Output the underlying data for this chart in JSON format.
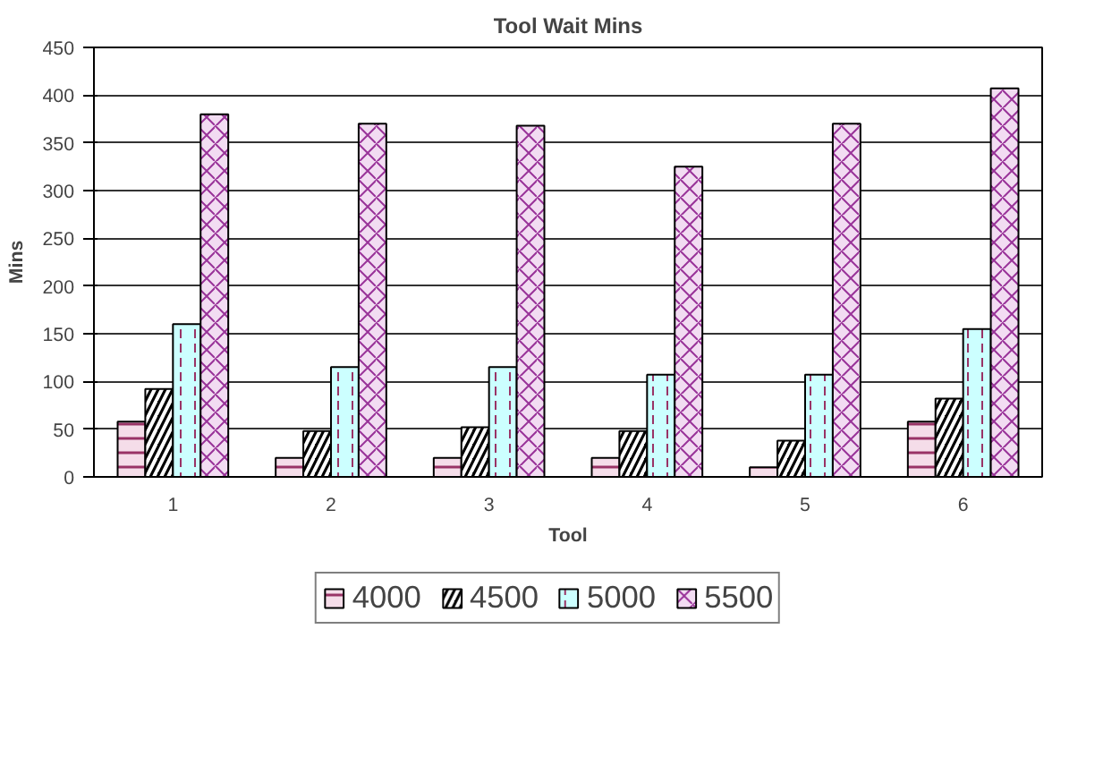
{
  "chart_data": {
    "type": "bar",
    "title": "Tool Wait Mins",
    "xlabel": "Tool",
    "ylabel": "Mins",
    "categories": [
      "1",
      "2",
      "3",
      "4",
      "5",
      "6"
    ],
    "series": [
      {
        "name": "4000",
        "color": "#f5dde9",
        "values": [
          58,
          20,
          20,
          20,
          10,
          58
        ]
      },
      {
        "name": "4500",
        "color": "#000000",
        "values": [
          92,
          48,
          52,
          48,
          38,
          82
        ]
      },
      {
        "name": "5000",
        "color": "#ccffff",
        "values": [
          160,
          115,
          115,
          107,
          107,
          155
        ]
      },
      {
        "name": "5500",
        "color": "#f2dcf2",
        "values": [
          380,
          370,
          368,
          325,
          370,
          407
        ]
      }
    ],
    "ylim": [
      0,
      450
    ],
    "yticks": [
      0,
      50,
      100,
      150,
      200,
      250,
      300,
      350,
      400,
      450
    ],
    "grid": "y",
    "legend": "bottom"
  }
}
